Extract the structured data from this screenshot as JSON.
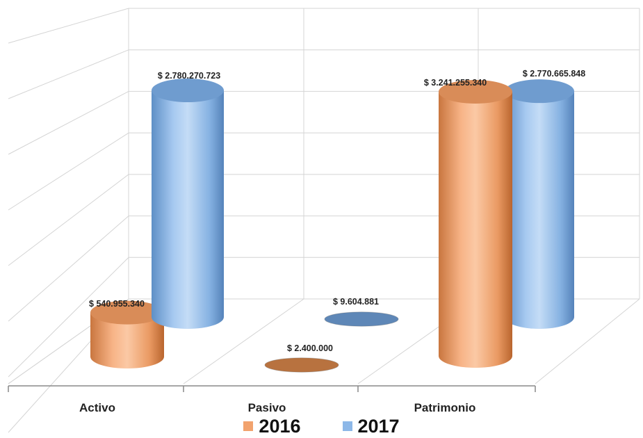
{
  "chart_data": {
    "type": "bar",
    "style": "3d-cylinder",
    "categories": [
      "Activo",
      "Pasivo",
      "Patrimonio"
    ],
    "series": [
      {
        "name": "2016",
        "color": "#F2A36E",
        "values": [
          540955340,
          2400000,
          3241255340
        ],
        "labels": [
          "$ 540.955.340",
          "$ 2.400.000",
          "$ 3.241.255.340"
        ]
      },
      {
        "name": "2017",
        "color": "#8DB8E8",
        "values": [
          2780270723,
          9604881,
          2770665848
        ],
        "labels": [
          "$ 2.780.270.723",
          "$ 9.604.881",
          "$ 2.770.665.848"
        ]
      }
    ],
    "grid": true,
    "legend": "bottom"
  }
}
